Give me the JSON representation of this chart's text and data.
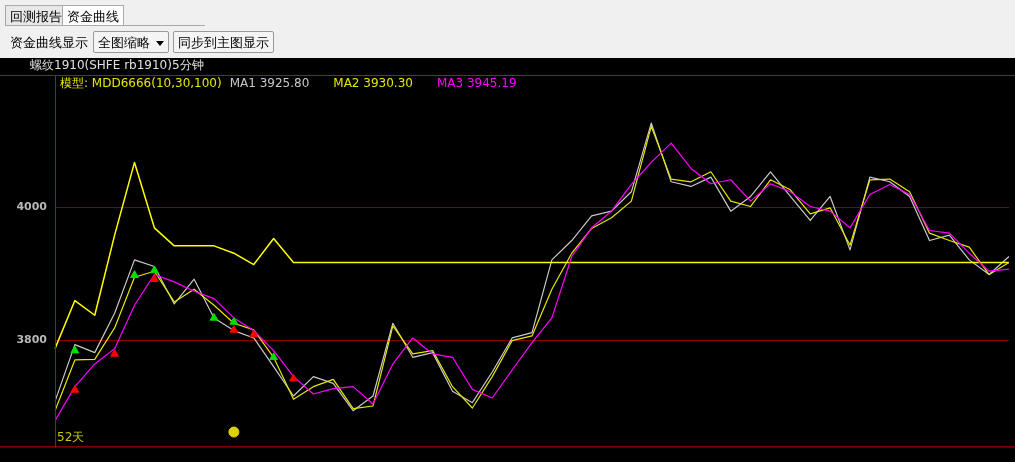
{
  "chart_data": {
    "type": "line",
    "title": "螺纹1910(SHFE rb1910)5分钟",
    "legend_title": "模型: MDD6666(10,30,100)",
    "legend": "top left",
    "grid": "y",
    "line_style": "solid",
    "annotations": [
      "回测报告",
      "资金曲线",
      "资金曲线显示",
      "全图缩略",
      "同步到主图显示",
      "52天"
    ],
    "categories": [
      null,
      null,
      null,
      null,
      null,
      null,
      null,
      null,
      null,
      null,
      null,
      null,
      null,
      null,
      null,
      null,
      null,
      null,
      null,
      null,
      null,
      null,
      null,
      null,
      null,
      null,
      null,
      null,
      null,
      null,
      null,
      null,
      null,
      null,
      null,
      null,
      null,
      null,
      null,
      null,
      null,
      null,
      null,
      null,
      null,
      null,
      null,
      null,
      null
    ],
    "ylim": [
      3640,
      4198
    ],
    "yticks": [
      3800,
      4000
    ],
    "series": [
      {
        "name": "MA1 3925.80",
        "color": "#c8c8c8",
        "values": [
          3709,
          3794,
          3782,
          3841,
          3921,
          3911,
          3855,
          3892,
          3834,
          3815,
          3804,
          3761,
          3717,
          3746,
          3736,
          3695,
          3717,
          3826,
          3775,
          3782,
          3724,
          3707,
          3753,
          3804,
          3812,
          3921,
          3950,
          3987,
          3994,
          4023,
          4126,
          4038,
          4031,
          4045,
          3994,
          4016,
          4053,
          4016,
          3980,
          4016,
          3936,
          4045,
          4038,
          4016,
          3950,
          3958,
          3921,
          3899,
          3926
        ]
      },
      {
        "color": "#ffff00",
        "values": [
          3788,
          3860,
          3838,
          3958,
          4067,
          3969,
          3942,
          3942,
          3942,
          3931,
          3914,
          3953,
          3917,
          3917,
          3917,
          3917,
          3917,
          3917,
          3917,
          3917,
          3917,
          3917,
          3917,
          3917,
          3917,
          3917,
          3917,
          3917,
          3917,
          3917,
          3917,
          3917,
          3917,
          3917,
          3917,
          3917,
          3917,
          3917,
          3917,
          3917,
          3917,
          3917,
          3917,
          3917,
          3917,
          3917,
          3917,
          3917,
          3917
        ]
      },
      {
        "name": "MA2 3930.30",
        "color": "#e6e600",
        "values": [
          3695,
          3771,
          3772,
          3819,
          3895,
          3904,
          3858,
          3877,
          3853,
          3826,
          3816,
          3775,
          3712,
          3731,
          3742,
          3698,
          3702,
          3822,
          3780,
          3785,
          3731,
          3699,
          3746,
          3800,
          3807,
          3877,
          3931,
          3968,
          3984,
          4009,
          4121,
          4042,
          4038,
          4053,
          4009,
          4001,
          4041,
          4026,
          3990,
          3999,
          3943,
          4041,
          4042,
          4023,
          3961,
          3950,
          3940,
          3899,
          3917
        ]
      },
      {
        "name": "MA3 3945.19",
        "color": "#ff00ff",
        "values": [
          3680,
          3731,
          3765,
          3788,
          3853,
          3899,
          3888,
          3874,
          3863,
          3834,
          3815,
          3785,
          3746,
          3720,
          3728,
          3731,
          3705,
          3765,
          3804,
          3780,
          3775,
          3727,
          3714,
          3756,
          3797,
          3834,
          3926,
          3969,
          3994,
          4034,
          4067,
          4096,
          4058,
          4035,
          4041,
          4009,
          4035,
          4023,
          4001,
          3994,
          3969,
          4019,
          4034,
          4019,
          3965,
          3961,
          3931,
          3904,
          3907
        ]
      },
      {
        "type": "scatter",
        "color": "#ff0000",
        "marker": "triangle",
        "values": [
          null,
          3726,
          null,
          3780,
          null,
          3892,
          null,
          null,
          null,
          3816,
          3809,
          null,
          3743,
          null,
          null,
          null,
          null,
          null,
          null,
          null,
          null,
          null,
          null,
          null,
          null,
          null,
          null,
          null,
          null,
          null,
          null,
          null,
          null,
          null,
          null,
          null,
          null,
          null,
          null,
          null,
          null,
          null,
          null,
          null,
          null,
          null,
          null,
          null,
          null
        ]
      },
      {
        "type": "scatter",
        "color": "#00e000",
        "marker": "triangle",
        "values": [
          null,
          3785,
          null,
          null,
          3898,
          3905,
          null,
          null,
          3834,
          3828,
          null,
          3775,
          null,
          null,
          null,
          null,
          null,
          null,
          null,
          null,
          null,
          null,
          null,
          null,
          null,
          null,
          null,
          null,
          null,
          null,
          null,
          null,
          null,
          null,
          null,
          null,
          null,
          null,
          null,
          null,
          null,
          null,
          null,
          null,
          null,
          null,
          null,
          null,
          null
        ]
      },
      {
        "type": "scatter",
        "color": "#e0d000",
        "marker": "circle",
        "values": [
          null,
          null,
          null,
          null,
          null,
          null,
          null,
          null,
          null,
          3663,
          null,
          null,
          null,
          null,
          null,
          null,
          null,
          null,
          null,
          null,
          null,
          null,
          null,
          null,
          null,
          null,
          null,
          null,
          null,
          null,
          null,
          null,
          null,
          null,
          null,
          null,
          null,
          null,
          null,
          null,
          null,
          null,
          null,
          null,
          null,
          null,
          null,
          null,
          null
        ]
      }
    ]
  }
}
